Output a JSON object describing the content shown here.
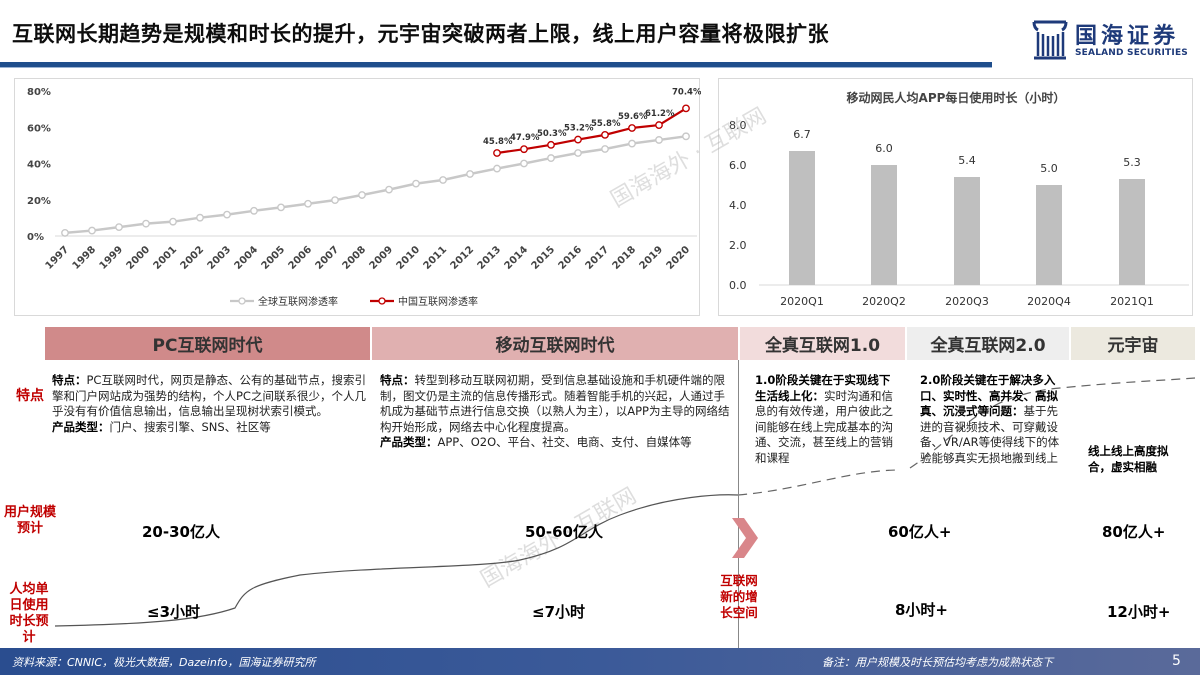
{
  "header": {
    "title": "互联网长期趋势是规模和时长的提升，元宇宙突破两者上限，线上用户容量将极限扩张",
    "logo": {
      "name": "国海证券",
      "sub": "SEALAND SECURITIES"
    }
  },
  "chart_data": [
    {
      "type": "line",
      "title": "",
      "xlabel": "",
      "ylabel": "",
      "ylim": [
        0,
        80
      ],
      "yticks": [
        "0%",
        "20%",
        "40%",
        "60%",
        "80%"
      ],
      "categories": [
        "1997",
        "1998",
        "1999",
        "2000",
        "2001",
        "2002",
        "2003",
        "2004",
        "2005",
        "2006",
        "2007",
        "2008",
        "2009",
        "2010",
        "2011",
        "2012",
        "2013",
        "2014",
        "2015",
        "2016",
        "2017",
        "2018",
        "2019",
        "2020"
      ],
      "series": [
        {
          "name": "全球互联网渗透率",
          "color": "#c8c8c8",
          "values": [
            1.7,
            3.0,
            4.9,
            6.8,
            7.9,
            10.1,
            11.8,
            13.9,
            15.8,
            17.8,
            19.8,
            22.6,
            25.6,
            28.9,
            30.9,
            34.2,
            37.2,
            40.0,
            43.0,
            45.8,
            48.0,
            51.0,
            53.0,
            55.0
          ]
        },
        {
          "name": "中国互联网渗透率",
          "color": "#c00000",
          "start_index": 16,
          "values": [
            45.8,
            47.9,
            50.3,
            53.2,
            55.8,
            59.6,
            61.2,
            70.4
          ],
          "labels": [
            "45.8%",
            "47.9%",
            "50.3%",
            "53.2%",
            "55.8%",
            "59.6%",
            "61.2%",
            "70.4%"
          ]
        }
      ],
      "legend_position": "bottom",
      "grid": false
    },
    {
      "type": "bar",
      "title": "移动网民人均APP每日使用时长（小时）",
      "categories": [
        "2020Q1",
        "2020Q2",
        "2020Q3",
        "2020Q4",
        "2021Q1"
      ],
      "values": [
        6.7,
        6.0,
        5.4,
        5.0,
        5.3
      ],
      "labels": [
        "6.7",
        "6.0",
        "5.4",
        "5.0",
        "5.3"
      ],
      "yticks": [
        "0.0",
        "2.0",
        "4.0",
        "6.0",
        "8.0"
      ],
      "ylim": [
        0,
        8
      ],
      "color": "#bfbfbf",
      "grid": false
    }
  ],
  "eras": [
    {
      "label": "PC互联网时代",
      "bg": "#d08a8a"
    },
    {
      "label": "移动互联网时代",
      "bg": "#e0b0b0"
    },
    {
      "label": "全真互联网1.0",
      "bg": "#f2dcdc"
    },
    {
      "label": "全真互联网2.0",
      "bg": "#eeeeee"
    },
    {
      "label": "元宇宙",
      "bg": "#ece9df"
    }
  ],
  "features": {
    "row_label": "特点",
    "pc": {
      "head": "特点：",
      "body": "PC互联网时代，网页是静态、公有的基础节点，搜索引擎和门户网站成为强势的结构，个人PC之间联系很少，个人几乎没有有价值信息输出，信息输出呈现树状索引模式。",
      "type_head": "产品类型：",
      "type_body": "门户、搜索引擎、SNS、社区等"
    },
    "mobile": {
      "head": "特点：",
      "body": "转型到移动互联网初期，受到信息基础设施和手机硬件端的限制，图文仍是主流的信息传播形式。随着智能手机的兴起，人通过手机成为基础节点进行信息交换（以熟人为主），以APP为主导的网络结构开始形成，网络去中心化程度提高。",
      "type_head": "产品类型：",
      "type_body": "APP、O2O、平台、社交、电商、支付、自媒体等"
    },
    "v1": {
      "head": "1.0阶段关键在于实现线下生活线上化：",
      "body": "实时沟通和信息的有效传递，用户彼此之间能够在线上完成基本的沟通、交流，甚至线上的营销和课程"
    },
    "v2": {
      "head": "2.0阶段关键在于解决多入口、实时性、高并发、高拟真、沉浸式等问题：",
      "body": "基于先进的音视频技术、可穿戴设备、VR/AR等使得线下的体验能够真实无损地搬到线上"
    },
    "meta": {
      "head": "线上线上高度拟合，虚实相融"
    }
  },
  "users": {
    "row_label": "用户规模预计",
    "pc": "20-30亿人",
    "mobile": "50-60亿人",
    "v1": "60亿人+",
    "meta": "80亿人+"
  },
  "time": {
    "row_label": "人均单日使用时长预计",
    "pc": "≤3小时",
    "mobile": "≤7小时",
    "v1": "8小时+",
    "meta": "12小时+"
  },
  "growth_label": "互联网新的增长空间",
  "footer": {
    "source": "资料来源：CNNIC，极光大数据，Dazeinfo，国海证券研究所",
    "note": "备注：用户规模及时长预估均考虑为成熟状态下",
    "page": "5"
  },
  "watermark": "国海海外 · 互联网"
}
